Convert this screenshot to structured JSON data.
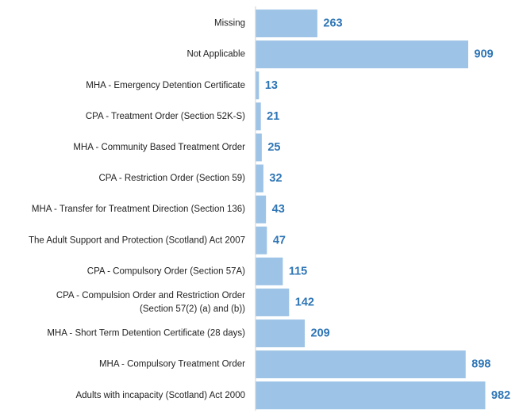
{
  "chart_data": {
    "type": "bar",
    "orientation": "horizontal",
    "title": "",
    "xlabel": "",
    "ylabel": "",
    "categories": [
      [
        "Missing"
      ],
      [
        "Not Applicable"
      ],
      [
        "MHA - Emergency Detention Certificate"
      ],
      [
        "CPA - Treatment Order (Section 52K-S)"
      ],
      [
        "MHA - Community Based Treatment Order"
      ],
      [
        "CPA - Restriction Order (Section 59)"
      ],
      [
        "MHA - Transfer for Treatment Direction (Section 136)"
      ],
      [
        "The Adult Support and Protection (Scotland) Act 2007"
      ],
      [
        "CPA - Compulsory Order (Section 57A)"
      ],
      [
        "CPA - Compulsion Order and Restriction Order",
        "(Section 57(2) (a) and (b))"
      ],
      [
        "MHA - Short Term Detention Certificate (28 days)"
      ],
      [
        "MHA - Compulsory Treatment Order"
      ],
      [
        "Adults with incapacity (Scotland) Act 2000"
      ]
    ],
    "values": [
      263,
      909,
      13,
      21,
      25,
      32,
      43,
      47,
      115,
      142,
      209,
      898,
      982
    ],
    "xlim": [
      0,
      982
    ],
    "grid": false,
    "legend": "none",
    "bar_color": "#9dc3e6",
    "label_color": "#2e75b6",
    "axis_color": "#d0d0d0"
  }
}
